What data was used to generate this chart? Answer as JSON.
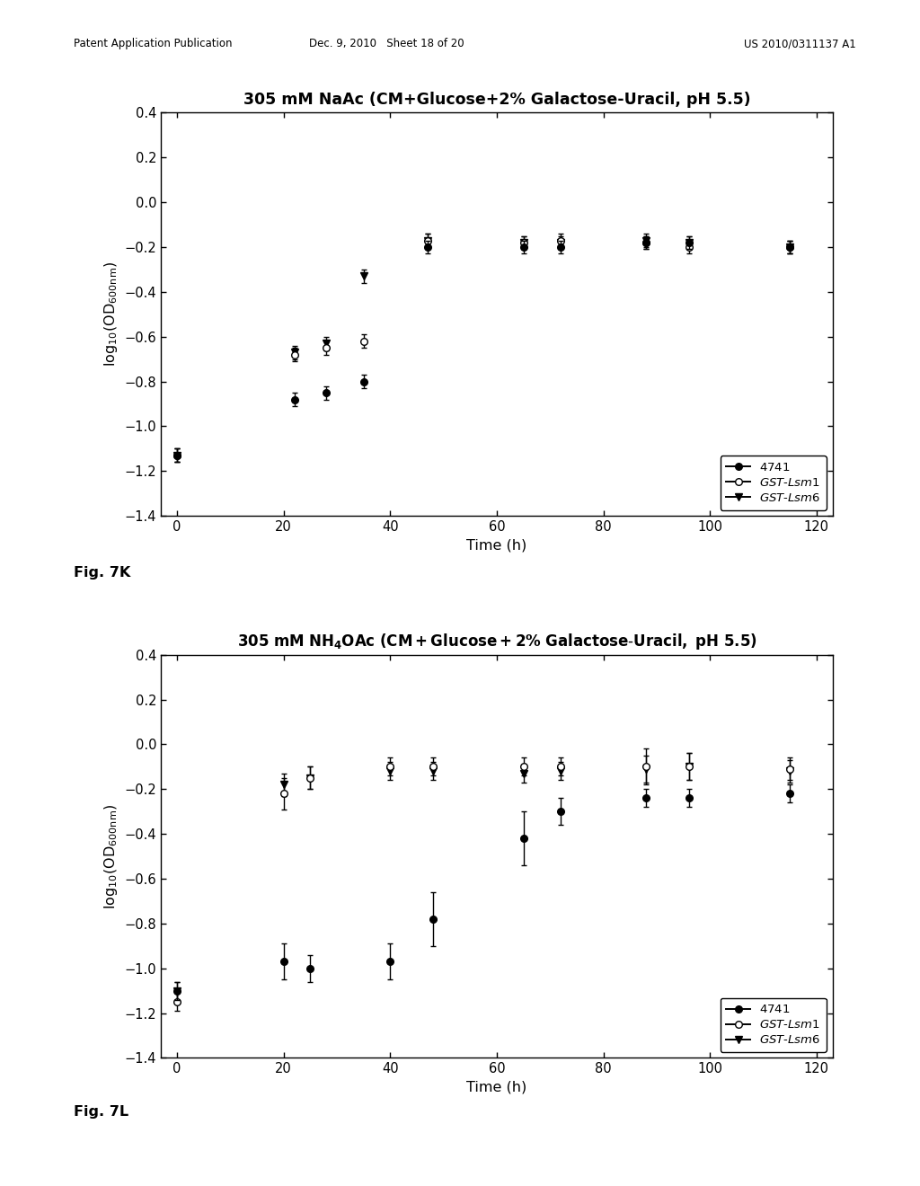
{
  "fig7K": {
    "title": "305 mM NaAc (CM+Glucose+2% Galactose-Uracil, pH 5.5)",
    "xlabel": "Time (h)",
    "xlim": [
      -3,
      123
    ],
    "ylim": [
      -1.4,
      0.4
    ],
    "yticks": [
      -1.4,
      -1.2,
      -1.0,
      -0.8,
      -0.6,
      -0.4,
      -0.2,
      0.0,
      0.2,
      0.4
    ],
    "xticks": [
      0,
      20,
      40,
      60,
      80,
      100,
      120
    ],
    "series_4741": {
      "x": [
        0,
        22,
        28,
        35,
        47,
        65,
        72,
        88,
        96,
        115
      ],
      "y": [
        -1.13,
        -0.88,
        -0.85,
        -0.8,
        -0.2,
        -0.2,
        -0.2,
        -0.18,
        -0.18,
        -0.2
      ],
      "yerr": [
        0.03,
        0.03,
        0.03,
        0.03,
        0.03,
        0.03,
        0.03,
        0.03,
        0.03,
        0.03
      ]
    },
    "series_lsm1": {
      "x": [
        0,
        22,
        28,
        35,
        47,
        65,
        72,
        88,
        96,
        115
      ],
      "y": [
        -1.13,
        -0.68,
        -0.65,
        -0.62,
        -0.17,
        -0.18,
        -0.17,
        -0.18,
        -0.2,
        -0.2
      ],
      "yerr": [
        0.03,
        0.03,
        0.03,
        0.03,
        0.03,
        0.03,
        0.03,
        0.03,
        0.03,
        0.03
      ]
    },
    "series_lsm6": {
      "x": [
        0,
        22,
        28,
        35,
        47,
        65,
        72,
        88,
        96,
        115
      ],
      "y": [
        -1.13,
        -0.67,
        -0.63,
        -0.33,
        -0.17,
        -0.18,
        -0.18,
        -0.17,
        -0.18,
        -0.2
      ],
      "yerr": [
        0.03,
        0.03,
        0.03,
        0.03,
        0.03,
        0.03,
        0.03,
        0.03,
        0.03,
        0.03
      ]
    },
    "fig_label": "Fig. 7K"
  },
  "fig7L": {
    "title_part1": "305 mM NH",
    "title_sub": "4",
    "title_part2": "OAc (CM+Glucose+2% Galactose-Uracil, pH 5.5)",
    "xlabel": "Time (h)",
    "xlim": [
      -3,
      123
    ],
    "ylim": [
      -1.4,
      0.4
    ],
    "yticks": [
      -1.4,
      -1.2,
      -1.0,
      -0.8,
      -0.6,
      -0.4,
      -0.2,
      0.0,
      0.2,
      0.4
    ],
    "xticks": [
      0,
      20,
      40,
      60,
      80,
      100,
      120
    ],
    "series_4741": {
      "x": [
        0,
        20,
        25,
        40,
        48,
        65,
        72,
        88,
        96,
        115
      ],
      "y": [
        -1.1,
        -0.97,
        -1.0,
        -0.97,
        -0.78,
        -0.42,
        -0.3,
        -0.24,
        -0.24,
        -0.22
      ],
      "yerr": [
        0.04,
        0.08,
        0.06,
        0.08,
        0.12,
        0.12,
        0.06,
        0.04,
        0.04,
        0.04
      ]
    },
    "series_lsm1": {
      "x": [
        0,
        20,
        25,
        40,
        48,
        65,
        72,
        88,
        96,
        115
      ],
      "y": [
        -1.15,
        -0.22,
        -0.15,
        -0.1,
        -0.1,
        -0.1,
        -0.1,
        -0.1,
        -0.1,
        -0.11
      ],
      "yerr": [
        0.04,
        0.07,
        0.05,
        0.04,
        0.04,
        0.04,
        0.04,
        0.08,
        0.06,
        0.05
      ]
    },
    "series_lsm6": {
      "x": [
        0,
        20,
        25,
        40,
        48,
        65,
        72,
        88,
        96,
        115
      ],
      "y": [
        -1.1,
        -0.18,
        -0.15,
        -0.12,
        -0.12,
        -0.13,
        -0.12,
        -0.11,
        -0.1,
        -0.12
      ],
      "yerr": [
        0.04,
        0.05,
        0.05,
        0.04,
        0.04,
        0.04,
        0.04,
        0.06,
        0.06,
        0.05
      ]
    },
    "fig_label": "Fig. 7L"
  },
  "header_left": "Patent Application Publication",
  "header_mid": "Dec. 9, 2010   Sheet 18 of 20",
  "header_right": "US 2010/0311137 A1",
  "background_color": "#ffffff"
}
